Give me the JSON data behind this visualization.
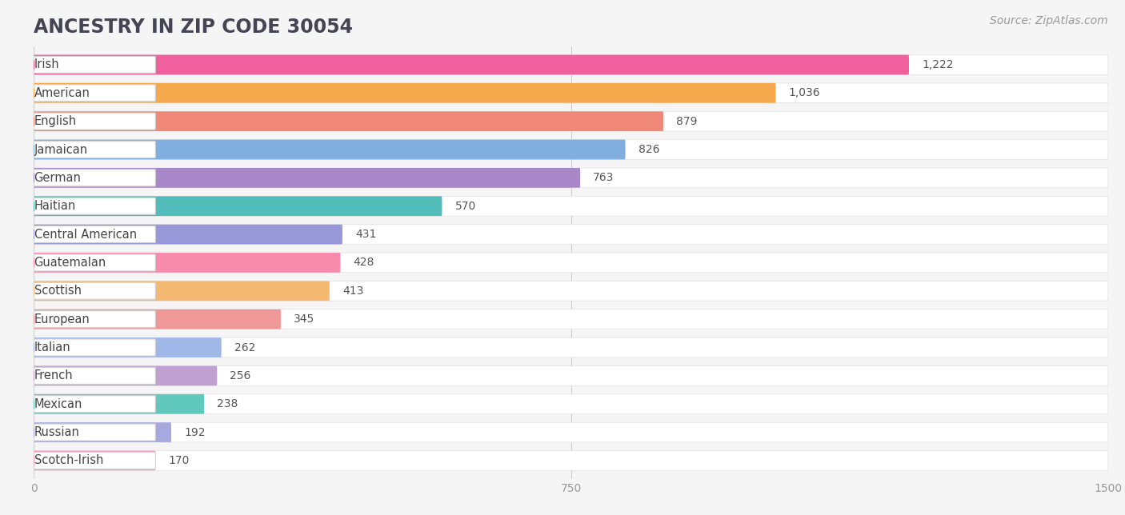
{
  "title": "ANCESTRY IN ZIP CODE 30054",
  "source": "Source: ZipAtlas.com",
  "categories": [
    "Irish",
    "American",
    "English",
    "Jamaican",
    "German",
    "Haitian",
    "Central American",
    "Guatemalan",
    "Scottish",
    "European",
    "Italian",
    "French",
    "Mexican",
    "Russian",
    "Scotch-Irish"
  ],
  "values": [
    1222,
    1036,
    879,
    826,
    763,
    570,
    431,
    428,
    413,
    345,
    262,
    256,
    238,
    192,
    170
  ],
  "bar_colors": [
    "#F0609C",
    "#F5A84C",
    "#F08878",
    "#80AEDE",
    "#A888C8",
    "#52BCBA",
    "#9898D8",
    "#F88AAC",
    "#F5B870",
    "#F09898",
    "#A0B8E8",
    "#C0A0D0",
    "#60C8BC",
    "#A8A8E0",
    "#F8A0B8"
  ],
  "xlim": [
    0,
    1500
  ],
  "xticks": [
    0,
    750,
    1500
  ],
  "background_color": "#f5f5f5",
  "bar_bg_color": "#ffffff",
  "title_fontsize": 17,
  "label_fontsize": 10.5,
  "value_fontsize": 10,
  "source_fontsize": 10
}
